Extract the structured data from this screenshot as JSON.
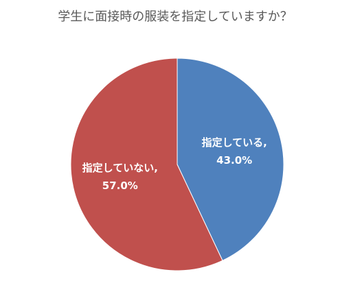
{
  "chart_data": {
    "type": "pie",
    "title": "学生に面接時の服装を指定していますか？",
    "categories": [
      "指定している,",
      "指定していない,"
    ],
    "values": [
      43.0,
      57.0
    ],
    "value_labels": [
      "43.0%",
      "57.0%"
    ],
    "colors": [
      "#4f81bd",
      "#c0504d"
    ]
  }
}
